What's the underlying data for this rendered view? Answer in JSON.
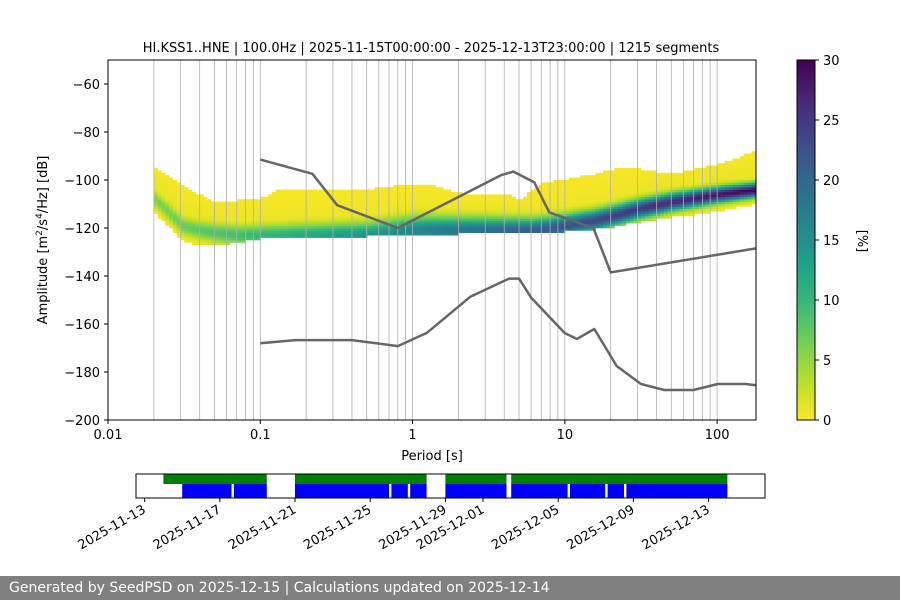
{
  "figure": {
    "title": "HI.KSS1..HNE | 100.0Hz | 2025-11-15T00:00:00 - 2025-12-13T23:00:00 | 1215 segments"
  },
  "chart_data": [
    {
      "type": "heatmap",
      "title": "HI.KSS1..HNE | 100.0Hz | 2025-11-15T00:00:00 - 2025-12-13T23:00:00 | 1215 segments",
      "xlabel": "Period [s]",
      "ylabel_parts": [
        "Amplitude [m",
        "2",
        "/s",
        "4",
        "/Hz] [dB]"
      ],
      "xscale": "log",
      "xlim": [
        0.01,
        180
      ],
      "ylim": [
        -200,
        -50
      ],
      "x_ticks": [
        0.01,
        0.1,
        1,
        10,
        100
      ],
      "x_tick_labels": [
        "0.01",
        "0.1",
        "1",
        "10",
        "100"
      ],
      "y_ticks": [
        -200,
        -180,
        -160,
        -140,
        -120,
        -100,
        -80,
        -60
      ],
      "y_tick_labels": [
        "−200",
        "−180",
        "−160",
        "−140",
        "−120",
        "−100",
        "−80",
        "−60"
      ],
      "grid": true,
      "colorbar": {
        "label": "[%]",
        "range": [
          0,
          30
        ],
        "ticks": [
          0,
          5,
          10,
          15,
          20,
          25,
          30
        ],
        "colormap": "viridis_r"
      },
      "psd_mode_curve": {
        "x": [
          0.02,
          0.025,
          0.03,
          0.04,
          0.05,
          0.07,
          0.1,
          0.15,
          0.2,
          0.3,
          0.5,
          0.7,
          1,
          1.5,
          2,
          3,
          4,
          5,
          6,
          8,
          10,
          12,
          15,
          20,
          30,
          50,
          100,
          180
        ],
        "y": [
          -108,
          -114,
          -119,
          -121,
          -122,
          -123,
          -123,
          -123,
          -123,
          -123,
          -123,
          -122,
          -121,
          -121,
          -121,
          -121,
          -121,
          -121,
          -121,
          -120,
          -119,
          -118,
          -117,
          -115,
          -112,
          -109,
          -106,
          -104
        ]
      },
      "psd_upper_edge": {
        "x": [
          0.02,
          0.03,
          0.05,
          0.1,
          0.15,
          0.2,
          0.3,
          0.4,
          0.6,
          1,
          1.5,
          2,
          3,
          4,
          5,
          6,
          8,
          10,
          15,
          20,
          30,
          50,
          100,
          180
        ],
        "y": [
          -95,
          -103,
          -110,
          -108,
          -102,
          -98,
          -97,
          -96,
          -97,
          -100,
          -104,
          -106,
          -106,
          -106,
          -109,
          -104,
          -100,
          -99,
          -98,
          -95,
          -96,
          -98,
          -94,
          -88
        ]
      },
      "psd_lower_edge": {
        "x": [
          0.02,
          0.03,
          0.05,
          0.1,
          0.15,
          0.2,
          0.3,
          0.5,
          1,
          2,
          4,
          6,
          10,
          15,
          20,
          30,
          50,
          100,
          180
        ],
        "y": [
          -116,
          -126,
          -127,
          -124,
          -124,
          -124,
          -124,
          -123,
          -123,
          -122,
          -122,
          -122,
          -121,
          -120,
          -119,
          -117,
          -115,
          -113,
          -112
        ]
      },
      "noise_model_high": {
        "x": [
          0.1,
          0.22,
          0.32,
          0.8,
          3.8,
          4.6,
          6.3,
          7.9,
          15.4,
          20,
          180
        ],
        "y": [
          -91.5,
          -97.4,
          -110.5,
          -120,
          -98,
          -96.5,
          -101,
          -113.5,
          -120,
          -138.5,
          -128.5
        ]
      },
      "noise_model_low": {
        "x": [
          0.1,
          0.17,
          0.4,
          0.8,
          1.24,
          2.4,
          4.3,
          5,
          6,
          10,
          12,
          15.6,
          21.9,
          31.6,
          45,
          70,
          101,
          154,
          180
        ],
        "y": [
          -168,
          -166.7,
          -166.7,
          -169.2,
          -163.7,
          -148.6,
          -141.1,
          -141.1,
          -149,
          -163.8,
          -166.2,
          -162.1,
          -177.5,
          -185,
          -187.5,
          -187.5,
          -185,
          -185,
          -185.5
        ]
      }
    },
    {
      "type": "timeline",
      "date_ticks": [
        "2025-11-13",
        "2025-11-17",
        "2025-11-21",
        "2025-11-25",
        "2025-11-29",
        "2025-12-01",
        "2025-12-05",
        "2025-12-09",
        "2025-12-13"
      ],
      "xlim": [
        "2025-11-12T13:00",
        "2025-12-16T00:00"
      ],
      "colors": {
        "data_available": "#008000",
        "psd_calculated": "#0000ff"
      },
      "data_available_spans": [
        [
          "2025-11-14T00:00",
          "2025-11-19T12:00"
        ],
        [
          "2025-11-21T00:00",
          "2025-11-28T00:00"
        ],
        [
          "2025-11-29T00:00",
          "2025-12-02T06:00"
        ],
        [
          "2025-12-02T12:00",
          "2025-12-14T00:00"
        ]
      ],
      "psd_calculated_spans": [
        [
          "2025-11-15T00:00",
          "2025-11-17T15:00"
        ],
        [
          "2025-11-17T18:00",
          "2025-11-19T12:00"
        ],
        [
          "2025-11-21T00:00",
          "2025-11-26T00:00"
        ],
        [
          "2025-11-26T03:00",
          "2025-11-27T00:00"
        ],
        [
          "2025-11-27T03:00",
          "2025-11-28T00:00"
        ],
        [
          "2025-11-29T00:00",
          "2025-12-02T06:00"
        ],
        [
          "2025-12-02T12:00",
          "2025-12-05T12:00"
        ],
        [
          "2025-12-05T15:00",
          "2025-12-07T12:00"
        ],
        [
          "2025-12-07T15:00",
          "2025-12-08T12:00"
        ],
        [
          "2025-12-08T15:00",
          "2025-12-14T00:00"
        ]
      ]
    }
  ],
  "footer": {
    "text": "Generated by SeedPSD on 2025-12-15 | Calculations updated on 2025-12-14"
  }
}
